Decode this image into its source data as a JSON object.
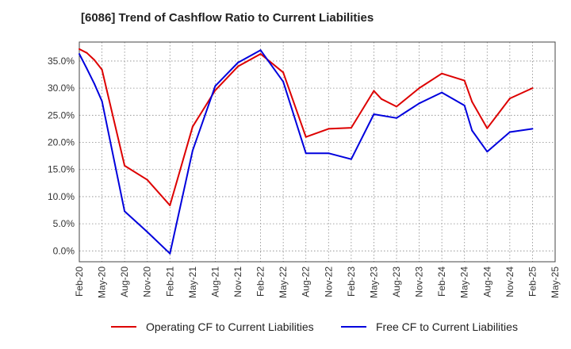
{
  "title": "[6086]  Trend of Cashflow Ratio to Current Liabilities",
  "chart_data": {
    "type": "line",
    "title": "[6086]  Trend of Cashflow Ratio to Current Liabilities",
    "xlabel": "",
    "ylabel": "",
    "ylim": [
      -2.0,
      38.5
    ],
    "grid": true,
    "legend_position": "bottom",
    "x_tick_labels": [
      "Feb-20",
      "May-20",
      "Aug-20",
      "Nov-20",
      "Feb-21",
      "May-21",
      "Aug-21",
      "Nov-21",
      "Feb-22",
      "May-22",
      "Aug-22",
      "Nov-22",
      "Feb-23",
      "May-23",
      "Aug-23",
      "Nov-23",
      "Feb-24",
      "May-24",
      "Aug-24",
      "Nov-24",
      "Feb-25",
      "May-25"
    ],
    "y_ticks": [
      0,
      5,
      10,
      15,
      20,
      25,
      30,
      35
    ],
    "y_tick_labels": [
      "0.0%",
      "5.0%",
      "10.0%",
      "15.0%",
      "20.0%",
      "25.0%",
      "30.0%",
      "35.0%"
    ],
    "series": [
      {
        "name": "Operating CF to Current Liabilities",
        "color": "#dd0000",
        "x": [
          "Feb-20",
          "Mar-20",
          "Apr-20",
          "May-20",
          "Aug-20",
          "Nov-20",
          "Feb-21",
          "May-21",
          "Aug-21",
          "Nov-21",
          "Feb-22",
          "May-22",
          "Aug-22",
          "Nov-22",
          "Feb-23",
          "May-23",
          "Jun-23",
          "Aug-23",
          "Nov-23",
          "Feb-24",
          "May-24",
          "Jun-24",
          "Aug-24",
          "Nov-24",
          "Feb-25"
        ],
        "values": [
          37.2,
          36.5,
          35.2,
          33.4,
          15.7,
          13.1,
          8.4,
          22.9,
          29.6,
          34.0,
          36.3,
          32.9,
          21.0,
          22.5,
          22.7,
          29.5,
          28.0,
          26.6,
          30.0,
          32.7,
          31.4,
          27.5,
          22.6,
          28.1,
          30.0
        ]
      },
      {
        "name": "Free CF to Current Liabilities",
        "color": "#0000dd",
        "x": [
          "Feb-20",
          "Mar-20",
          "Apr-20",
          "May-20",
          "Aug-20",
          "Nov-20",
          "Feb-21",
          "May-21",
          "Aug-21",
          "Nov-21",
          "Feb-22",
          "May-22",
          "Aug-22",
          "Nov-22",
          "Feb-23",
          "May-23",
          "Aug-23",
          "Nov-23",
          "Feb-24",
          "May-24",
          "Jun-24",
          "Aug-24",
          "Nov-24",
          "Feb-25"
        ],
        "values": [
          36.3,
          33.6,
          30.8,
          27.6,
          7.3,
          3.5,
          -0.5,
          18.5,
          30.4,
          34.7,
          37.0,
          31.2,
          18.0,
          18.0,
          16.9,
          25.2,
          24.5,
          27.2,
          29.2,
          26.8,
          22.2,
          18.3,
          21.9,
          22.5
        ]
      }
    ]
  }
}
